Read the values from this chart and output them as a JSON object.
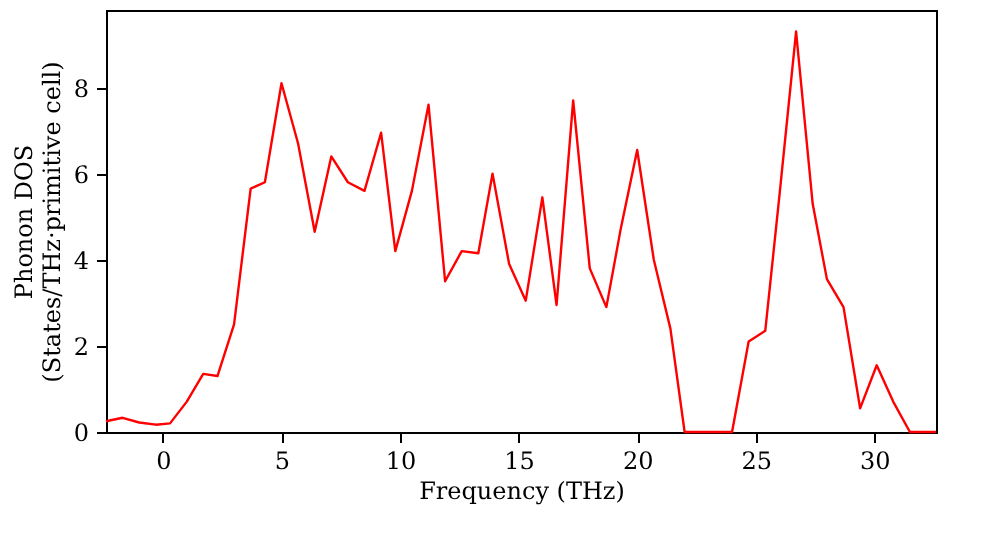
{
  "chart_data": {
    "type": "line",
    "xlabel": "Frequency (THz)",
    "ylabel": "Phonon DOS\n(States/THz·primitive cell)",
    "x": [
      -2.4,
      -1.7,
      -1.0,
      -0.3,
      0.3,
      1.0,
      1.7,
      2.3,
      3.0,
      3.7,
      4.3,
      5.0,
      5.7,
      6.4,
      7.1,
      7.8,
      8.5,
      9.2,
      9.8,
      10.5,
      11.2,
      11.9,
      12.6,
      13.3,
      13.9,
      14.6,
      15.3,
      16.0,
      16.6,
      17.3,
      18.0,
      18.7,
      19.3,
      20.0,
      20.7,
      21.4,
      22.0,
      22.7,
      23.4,
      24.0,
      24.7,
      25.4,
      26.0,
      26.7,
      27.4,
      28.0,
      28.7,
      29.4,
      30.1,
      30.8,
      31.5,
      32.6
    ],
    "series": [
      {
        "color": "#ff0000",
        "values": [
          0.25,
          0.33,
          0.22,
          0.17,
          0.2,
          0.7,
          1.35,
          1.3,
          2.5,
          5.65,
          5.8,
          8.1,
          6.7,
          4.65,
          6.4,
          5.8,
          5.6,
          6.95,
          4.2,
          5.6,
          7.6,
          3.5,
          4.2,
          4.15,
          6.0,
          3.9,
          3.05,
          5.45,
          2.95,
          7.7,
          3.8,
          2.9,
          4.7,
          6.55,
          4.0,
          2.4,
          0,
          0,
          0,
          0,
          2.1,
          2.35,
          5.5,
          9.3,
          5.3,
          3.55,
          2.9,
          0.55,
          1.55,
          0.7,
          0,
          0
        ]
      }
    ],
    "xlim": [
      -2.4,
      32.6
    ],
    "ylim": [
      0,
      9.8
    ],
    "xticks": [
      0,
      5,
      10,
      15,
      20,
      25,
      30
    ],
    "yticks": [
      0,
      2,
      4,
      6,
      8
    ],
    "grid": false,
    "line_style": "solid",
    "marker": "none"
  }
}
